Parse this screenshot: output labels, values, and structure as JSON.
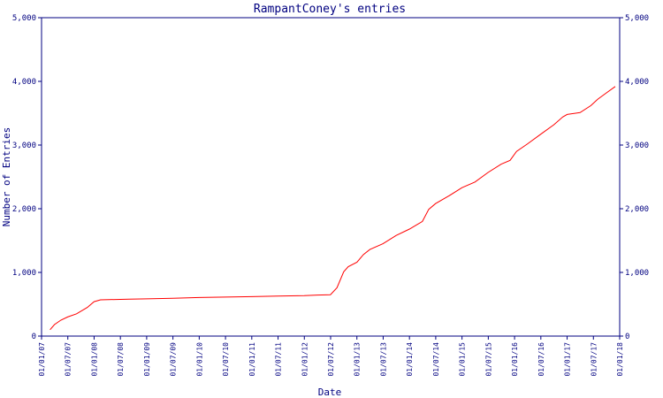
{
  "chart_data": {
    "type": "line",
    "title": "RampantConey's entries",
    "xlabel": "Date",
    "ylabel": "Number of Entries",
    "x_tick_labels": [
      "01/01/07",
      "01/07/07",
      "01/01/08",
      "01/07/08",
      "01/01/09",
      "01/07/09",
      "01/01/10",
      "01/07/10",
      "01/01/11",
      "01/07/11",
      "01/01/12",
      "01/07/12",
      "01/01/13",
      "01/07/13",
      "01/01/14",
      "01/07/14",
      "01/01/15",
      "01/07/15",
      "01/01/16",
      "01/07/16",
      "01/01/17",
      "01/07/17",
      "01/01/18"
    ],
    "y_ticks": [
      {
        "value": 0,
        "label": "0"
      },
      {
        "value": 1000,
        "label": "1,000"
      },
      {
        "value": 2000,
        "label": "2,000"
      },
      {
        "value": 3000,
        "label": "3,000"
      },
      {
        "value": 4000,
        "label": "4,000"
      },
      {
        "value": 5000,
        "label": "5,000"
      }
    ],
    "ylim": [
      0,
      5000
    ],
    "xlim": [
      "2007-01-01",
      "2018-01-01"
    ],
    "grid": false,
    "legend": "none",
    "colors": {
      "line": "#ff0000",
      "axis": "#000080",
      "text": "#000080"
    },
    "series": [
      {
        "points": [
          [
            "2007-03-01",
            100
          ],
          [
            "2007-04-01",
            180
          ],
          [
            "2007-05-15",
            250
          ],
          [
            "2007-07-01",
            300
          ],
          [
            "2007-09-01",
            350
          ],
          [
            "2007-11-15",
            450
          ],
          [
            "2008-01-01",
            540
          ],
          [
            "2008-02-15",
            570
          ],
          [
            "2008-06-01",
            575
          ],
          [
            "2008-09-01",
            580
          ],
          [
            "2009-01-01",
            585
          ],
          [
            "2009-07-01",
            595
          ],
          [
            "2010-01-01",
            605
          ],
          [
            "2010-07-01",
            612
          ],
          [
            "2011-01-01",
            620
          ],
          [
            "2011-07-01",
            628
          ],
          [
            "2012-01-01",
            635
          ],
          [
            "2012-04-01",
            645
          ],
          [
            "2012-07-01",
            650
          ],
          [
            "2012-08-15",
            760
          ],
          [
            "2012-10-01",
            1010
          ],
          [
            "2012-11-01",
            1090
          ],
          [
            "2013-01-01",
            1160
          ],
          [
            "2013-02-15",
            1280
          ],
          [
            "2013-04-01",
            1360
          ],
          [
            "2013-07-01",
            1450
          ],
          [
            "2013-10-01",
            1580
          ],
          [
            "2014-01-01",
            1680
          ],
          [
            "2014-04-01",
            1800
          ],
          [
            "2014-05-15",
            1990
          ],
          [
            "2014-07-01",
            2080
          ],
          [
            "2014-10-01",
            2200
          ],
          [
            "2015-01-01",
            2330
          ],
          [
            "2015-04-01",
            2420
          ],
          [
            "2015-07-01",
            2570
          ],
          [
            "2015-10-01",
            2700
          ],
          [
            "2015-12-01",
            2760
          ],
          [
            "2016-01-15",
            2900
          ],
          [
            "2016-04-01",
            3020
          ],
          [
            "2016-07-01",
            3170
          ],
          [
            "2016-10-01",
            3320
          ],
          [
            "2016-12-01",
            3440
          ],
          [
            "2017-01-01",
            3480
          ],
          [
            "2017-04-01",
            3510
          ],
          [
            "2017-06-15",
            3620
          ],
          [
            "2017-08-01",
            3720
          ],
          [
            "2017-10-01",
            3820
          ],
          [
            "2017-12-01",
            3920
          ]
        ]
      }
    ]
  }
}
